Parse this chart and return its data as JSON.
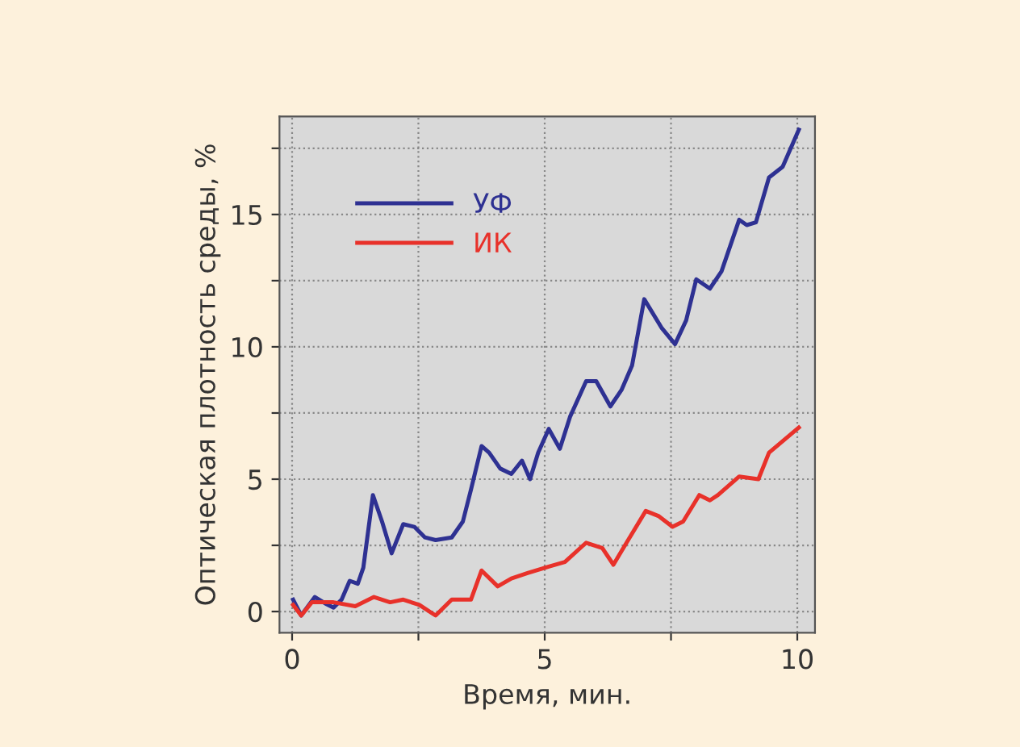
{
  "chart_data": {
    "type": "line",
    "xlabel": "Время, мин.",
    "ylabel": "Оптическая плотность среды, %",
    "xlim": [
      -0.25,
      10.35
    ],
    "ylim": [
      -0.8,
      18.7
    ],
    "xticks": [
      0,
      {
        "value": 2.5,
        "label": null
      },
      5,
      {
        "value": 7.5,
        "label": null
      },
      10
    ],
    "yticks": [
      0,
      {
        "value": 2.5,
        "label": null
      },
      5,
      {
        "value": 7.5,
        "label": null
      },
      10,
      {
        "value": 12.5,
        "label": null
      },
      15,
      {
        "value": 17.5,
        "label": null
      }
    ],
    "grid": true,
    "legend": "top left",
    "series": [
      {
        "name": "УФ",
        "color": "#2e3192",
        "x": [
          0.02,
          0.18,
          0.45,
          0.66,
          0.82,
          0.98,
          1.14,
          1.3,
          1.41,
          1.6,
          1.78,
          1.97,
          2.2,
          2.42,
          2.63,
          2.84,
          3.16,
          3.38,
          3.54,
          3.75,
          3.9,
          4.12,
          4.34,
          4.55,
          4.71,
          4.87,
          5.08,
          5.3,
          5.5,
          5.82,
          6.02,
          6.3,
          6.52,
          6.73,
          6.97,
          7.32,
          7.58,
          7.8,
          8.0,
          8.27,
          8.5,
          8.85,
          9.0,
          9.18,
          9.44,
          9.71,
          10.03
        ],
        "values": [
          0.45,
          -0.15,
          0.55,
          0.3,
          0.15,
          0.45,
          1.16,
          1.05,
          1.66,
          4.4,
          3.4,
          2.2,
          3.3,
          3.2,
          2.8,
          2.7,
          2.8,
          3.4,
          4.6,
          6.25,
          6.0,
          5.4,
          5.2,
          5.7,
          5.0,
          6.0,
          6.9,
          6.15,
          7.35,
          8.7,
          8.7,
          7.75,
          8.37,
          9.3,
          11.8,
          10.7,
          10.1,
          11.0,
          12.55,
          12.2,
          12.85,
          14.8,
          14.6,
          14.7,
          16.4,
          16.8,
          18.2
        ]
      },
      {
        "name": "ИК",
        "color": "#e8312a",
        "x": [
          0.02,
          0.18,
          0.39,
          0.82,
          1.25,
          1.62,
          1.94,
          2.2,
          2.52,
          2.84,
          3.16,
          3.54,
          3.75,
          4.07,
          4.34,
          4.66,
          5.08,
          5.4,
          5.82,
          6.14,
          6.36,
          6.62,
          7.0,
          7.26,
          7.53,
          7.74,
          8.06,
          8.27,
          8.43,
          8.85,
          9.23,
          9.44,
          10.03
        ],
        "values": [
          0.25,
          -0.15,
          0.35,
          0.35,
          0.2,
          0.55,
          0.35,
          0.45,
          0.25,
          -0.15,
          0.45,
          0.45,
          1.55,
          0.95,
          1.25,
          1.45,
          1.7,
          1.87,
          2.6,
          2.4,
          1.77,
          2.6,
          3.8,
          3.6,
          3.2,
          3.4,
          4.4,
          4.2,
          4.4,
          5.1,
          5.0,
          6.0,
          6.95
        ]
      }
    ]
  }
}
